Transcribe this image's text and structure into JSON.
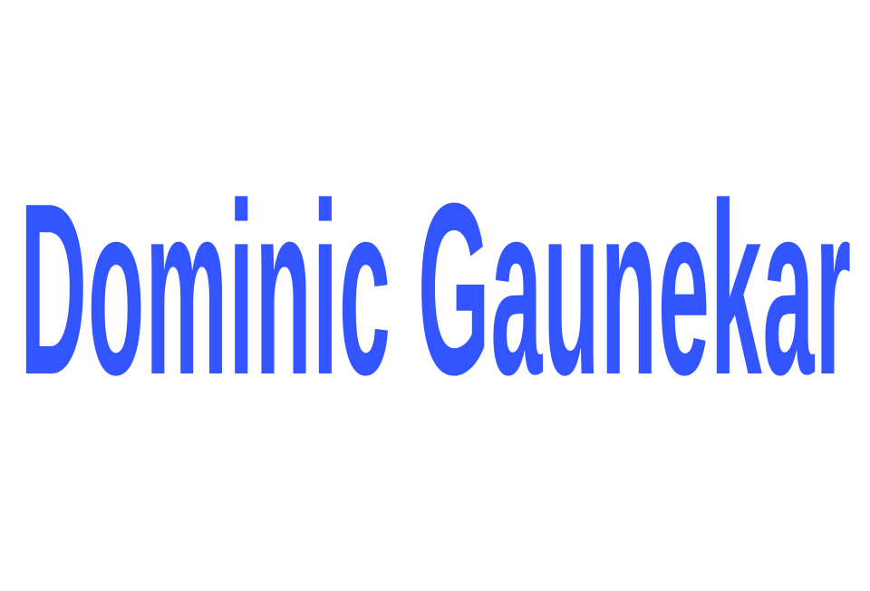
{
  "title": {
    "text": "Dominic Gaunekar",
    "color": "#3355ff"
  },
  "background_color": "#ffffff"
}
